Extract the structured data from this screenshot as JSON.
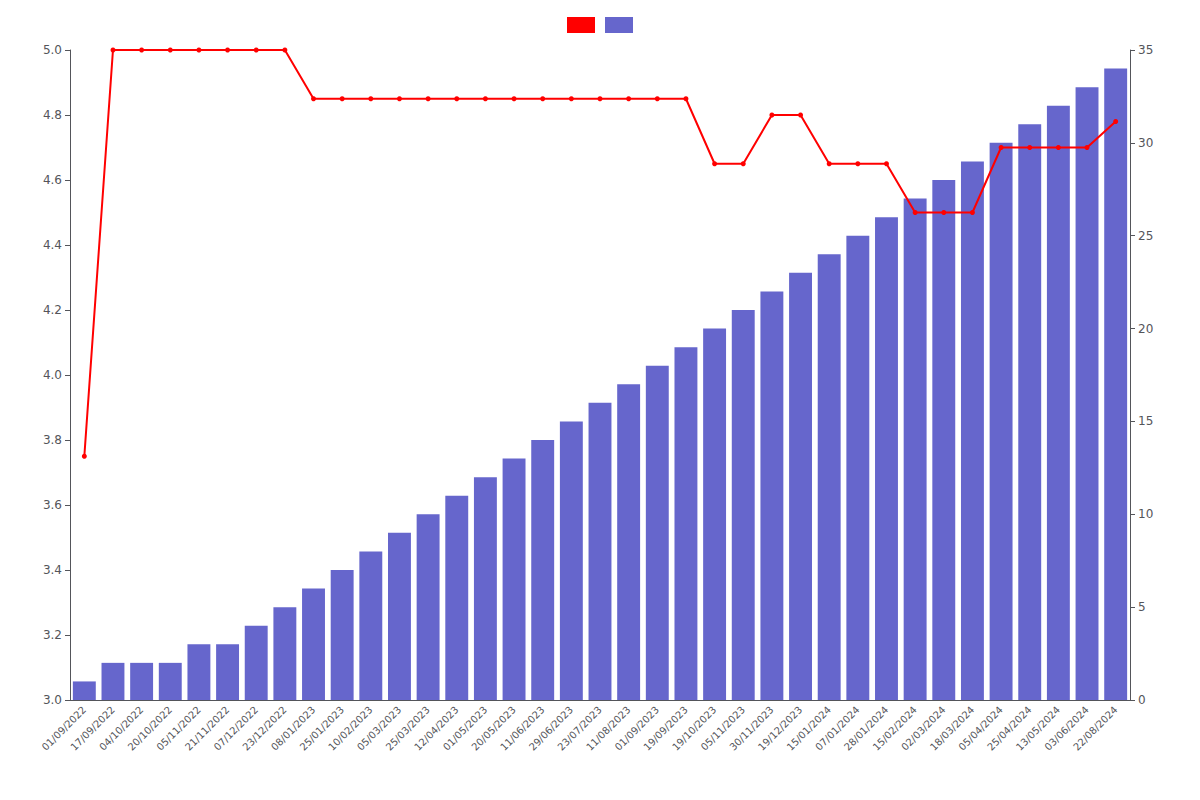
{
  "chart_data": {
    "type": "bar",
    "categories": [
      "01/09/2022",
      "17/09/2022",
      "04/10/2022",
      "20/10/2022",
      "05/11/2022",
      "21/11/2022",
      "07/12/2022",
      "23/12/2022",
      "08/01/2023",
      "25/01/2023",
      "10/02/2023",
      "05/03/2023",
      "25/03/2023",
      "12/04/2023",
      "01/05/2023",
      "20/05/2023",
      "11/06/2023",
      "29/06/2023",
      "23/07/2023",
      "11/08/2023",
      "01/09/2023",
      "19/09/2023",
      "19/10/2023",
      "05/11/2023",
      "30/11/2023",
      "19/12/2023",
      "15/01/2024",
      "07/01/2024",
      "28/01/2024",
      "15/02/2024",
      "02/03/2024",
      "18/03/2024",
      "05/04/2024",
      "25/04/2024",
      "13/05/2024",
      "03/06/2024",
      "22/08/2024"
    ],
    "series": [
      {
        "type": "bar",
        "axis": "y2",
        "color": "#6666cc",
        "values": [
          1,
          2,
          2,
          2,
          3,
          3,
          4,
          5,
          6,
          7,
          8,
          9,
          10,
          11,
          12,
          13,
          14,
          15,
          16,
          17,
          18,
          19,
          20,
          21,
          22,
          23,
          24,
          25,
          26,
          27,
          28,
          29,
          30,
          31,
          32,
          33,
          34
        ]
      },
      {
        "type": "line",
        "color": "#ff0000",
        "marker": "o",
        "values": [
          3.75,
          5.0,
          5.0,
          5.0,
          5.0,
          5.0,
          5.0,
          5.0,
          4.85,
          4.85,
          4.85,
          4.85,
          4.85,
          4.85,
          4.85,
          4.85,
          4.85,
          4.85,
          4.85,
          4.85,
          4.85,
          4.85,
          4.65,
          4.65,
          4.8,
          4.8,
          4.65,
          4.65,
          4.65,
          4.5,
          4.5,
          4.5,
          4.7,
          4.7,
          4.7,
          4.7,
          4.78
        ]
      }
    ],
    "ylim": [
      3.0,
      5.0
    ],
    "yticks": [
      {
        "value": 3.0,
        "label": "3.0"
      },
      3.2,
      3.4,
      3.6,
      3.8,
      {
        "value": 4.0,
        "label": "4.0"
      },
      4.2,
      4.4,
      4.6,
      4.8,
      {
        "value": 5.0,
        "label": "5.0"
      }
    ],
    "y2lim": [
      0,
      35
    ],
    "y2ticks": [
      0,
      5,
      10,
      15,
      20,
      25,
      30,
      35
    ],
    "grid": false,
    "legend": "top"
  }
}
